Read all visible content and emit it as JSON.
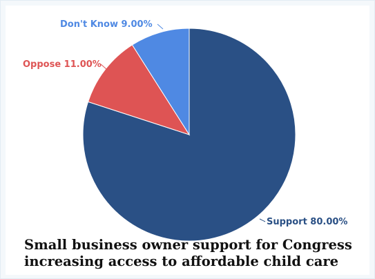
{
  "chart_data": {
    "type": "pie",
    "title": "Small business owner support for Congress increasing access to affordable child care",
    "slices": [
      {
        "label": "Support",
        "value": 80.0,
        "display": "Support 80.00%",
        "color": "#2a5085"
      },
      {
        "label": "Oppose",
        "value": 11.0,
        "display": "Oppose 11.00%",
        "color": "#de5454"
      },
      {
        "label": "Don't Know",
        "value": 9.0,
        "display": "Don't Know 9.00%",
        "color": "#4f89e3"
      }
    ]
  }
}
